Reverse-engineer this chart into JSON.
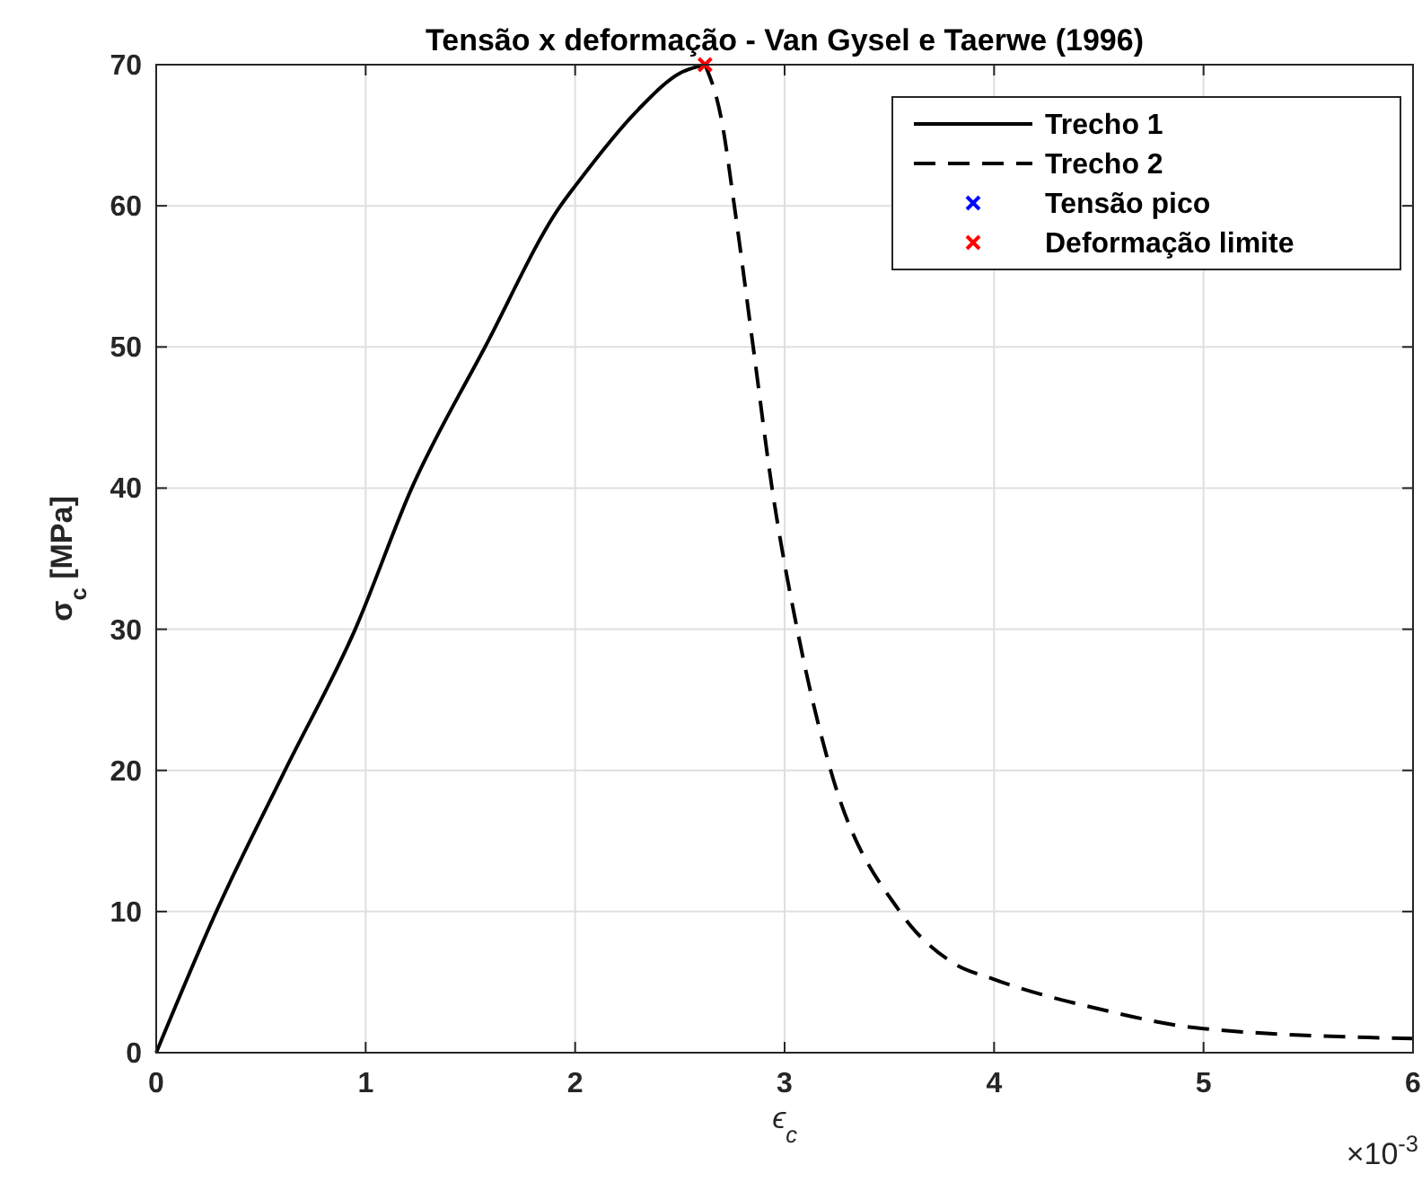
{
  "chart_data": {
    "type": "line",
    "title": "Tensão x deformação - Van Gysel e Taerwe (1996)",
    "xlabel": "ϵ$_{c}$",
    "ylabel": "σ$_{c}$ [MPa]",
    "annotations": [
      "×10$^{-3}$"
    ],
    "xlim": [
      0,
      6
    ],
    "xticks": [
      0,
      1,
      2,
      3,
      4,
      5,
      6
    ],
    "ylim": [
      0,
      70
    ],
    "yticks": [
      0,
      10,
      20,
      30,
      40,
      50,
      60,
      70
    ],
    "grid": true,
    "legend": "top right",
    "series": [
      {
        "name": "Trecho 1",
        "color": "#000000",
        "line_style": "solid",
        "marker": "none",
        "x": [
          0,
          0.287,
          0.615,
          0.95,
          1.22,
          1.57,
          1.93,
          2,
          2.3,
          2.5,
          2.62
        ],
        "values": [
          0,
          10,
          20,
          30,
          40,
          50,
          60,
          61.4,
          66.8,
          69.4,
          70
        ]
      },
      {
        "name": "Trecho 2",
        "color": "#000000",
        "line_style": "dashed",
        "marker": "none",
        "x": [
          2.62,
          2.7,
          2.76,
          2.85,
          2.94,
          3.06,
          3.22,
          3.55,
          3.8,
          4,
          4.5,
          5,
          6
        ],
        "values": [
          70,
          66,
          60,
          50,
          40,
          30,
          20,
          10,
          6.4,
          5.2,
          3.1,
          1.7,
          1
        ]
      },
      {
        "name": "Tensão pico",
        "type": "scatter",
        "color": "#0000ff",
        "marker": "cross",
        "x": [
          null
        ],
        "values": [
          null
        ]
      },
      {
        "name": "Deformação limite",
        "type": "scatter",
        "color": "#ff0000",
        "marker": "cross",
        "x": [
          2.62
        ],
        "values": [
          70
        ]
      }
    ]
  }
}
